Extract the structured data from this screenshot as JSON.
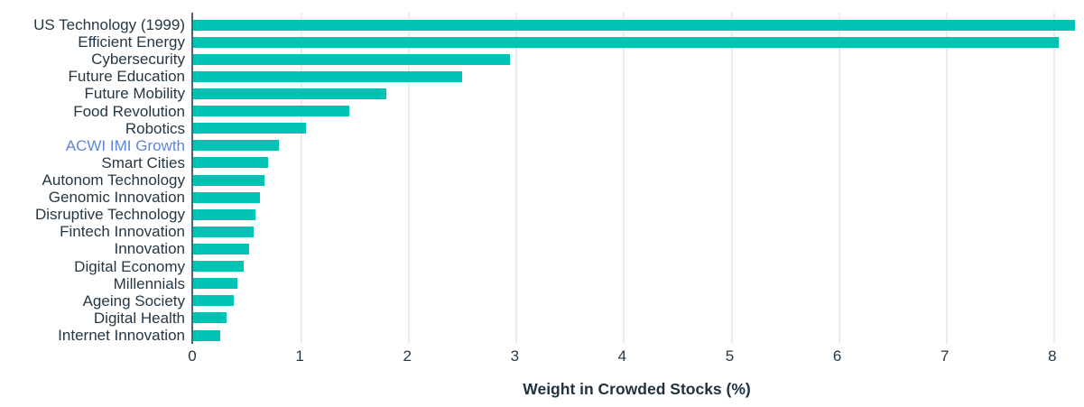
{
  "chart_data": {
    "type": "bar",
    "orientation": "horizontal",
    "title": "",
    "xlabel": "Weight in Crowded Stocks (%)",
    "ylabel": "",
    "xlim": [
      0,
      8.27
    ],
    "xticks": [
      0,
      1,
      2,
      3,
      4,
      5,
      6,
      7,
      8
    ],
    "grid": "vertical",
    "legend": "none",
    "categories": [
      "US Technology (1999)",
      "Efficient Energy",
      "Cybersecurity",
      "Future Education",
      "Future Mobility",
      "Food Revolution",
      "Robotics",
      "ACWI IMI Growth",
      "Smart Cities",
      "Autonom Technology",
      "Genomic Innovation",
      "Disruptive Technology",
      "Fintech Innovation",
      "Innovation",
      "Digital Economy",
      "Millennials",
      "Ageing Society",
      "Digital Health",
      "Internet Innovation"
    ],
    "values": [
      8.2,
      8.05,
      2.95,
      2.5,
      1.8,
      1.45,
      1.05,
      0.8,
      0.7,
      0.66,
      0.62,
      0.58,
      0.56,
      0.52,
      0.47,
      0.41,
      0.38,
      0.31,
      0.25
    ],
    "highlight_category": "ACWI IMI Growth",
    "colors": {
      "bar": "#00C3B3",
      "category_label": "#253746",
      "highlight_label": "#5E87DB",
      "tick_label": "#253746",
      "axis_title": "#1F3240",
      "axis_line": "#55616C",
      "gridline": "#EBEDED",
      "background": "#FFFFFF"
    }
  }
}
